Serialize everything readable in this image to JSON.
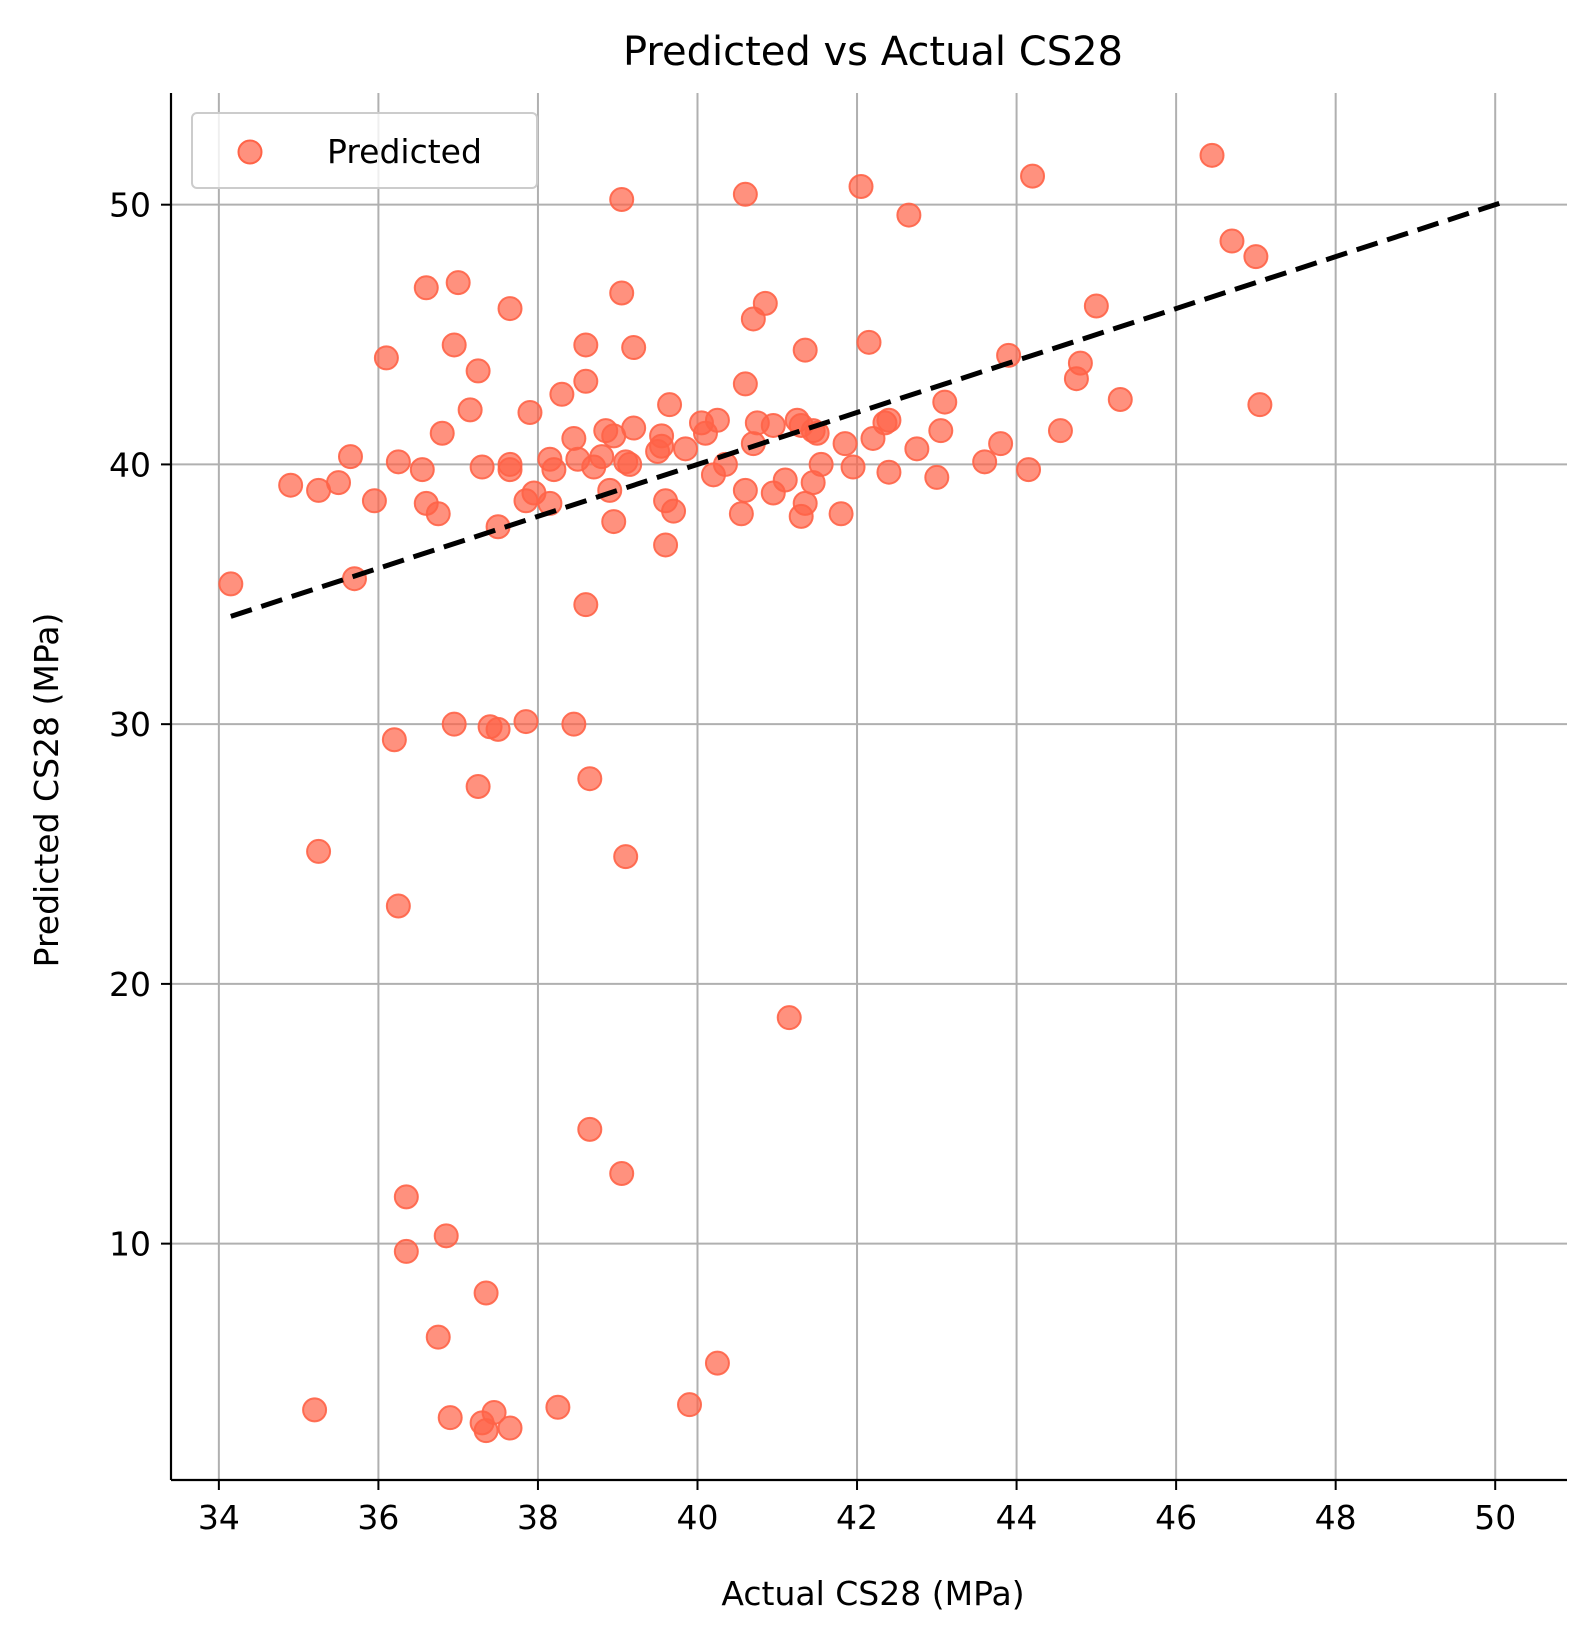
{
  "chart_data": {
    "type": "scatter",
    "title": "Predicted vs Actual CS28",
    "xlabel": "Actual CS28 (MPa)",
    "ylabel": "Predicted CS28 (MPa)",
    "xlim": [
      33.4,
      50.9
    ],
    "ylim": [
      0.9,
      54.3
    ],
    "xticks": [
      34,
      36,
      38,
      40,
      42,
      44,
      46,
      48,
      50
    ],
    "yticks": [
      10,
      20,
      30,
      40,
      50
    ],
    "grid": true,
    "legend_position": "top-left",
    "colors": {
      "points": "#ff6347",
      "reference_line": "#000000",
      "grid": "#b0b0b0"
    },
    "series": [
      {
        "name": "Predicted",
        "kind": "scatter",
        "points": [
          [
            34.15,
            35.4
          ],
          [
            34.9,
            39.2
          ],
          [
            35.25,
            39.0
          ],
          [
            35.5,
            39.3
          ],
          [
            35.65,
            40.3
          ],
          [
            35.7,
            35.6
          ],
          [
            35.95,
            38.6
          ],
          [
            36.1,
            44.1
          ],
          [
            36.25,
            40.1
          ],
          [
            36.55,
            39.8
          ],
          [
            36.6,
            38.5
          ],
          [
            36.6,
            46.8
          ],
          [
            36.75,
            38.1
          ],
          [
            36.8,
            41.2
          ],
          [
            36.95,
            44.6
          ],
          [
            37.0,
            47.0
          ],
          [
            37.15,
            42.1
          ],
          [
            37.25,
            43.6
          ],
          [
            37.3,
            39.9
          ],
          [
            37.5,
            37.6
          ],
          [
            37.65,
            40.0
          ],
          [
            37.65,
            39.8
          ],
          [
            37.65,
            46.0
          ],
          [
            37.85,
            38.6
          ],
          [
            37.9,
            42.0
          ],
          [
            37.95,
            38.9
          ],
          [
            38.15,
            40.2
          ],
          [
            38.15,
            38.5
          ],
          [
            38.2,
            39.8
          ],
          [
            38.3,
            42.7
          ],
          [
            38.45,
            41.0
          ],
          [
            38.5,
            40.2
          ],
          [
            38.6,
            44.6
          ],
          [
            38.6,
            43.2
          ],
          [
            38.7,
            39.9
          ],
          [
            38.8,
            40.3
          ],
          [
            38.85,
            41.3
          ],
          [
            38.9,
            39.0
          ],
          [
            38.95,
            41.1
          ],
          [
            38.95,
            37.8
          ],
          [
            39.05,
            46.6
          ],
          [
            39.05,
            50.2
          ],
          [
            39.1,
            40.1
          ],
          [
            39.15,
            40.0
          ],
          [
            39.2,
            44.5
          ],
          [
            39.2,
            41.4
          ],
          [
            39.5,
            40.5
          ],
          [
            39.55,
            41.1
          ],
          [
            39.55,
            40.7
          ],
          [
            39.6,
            38.6
          ],
          [
            39.6,
            36.9
          ],
          [
            39.65,
            42.3
          ],
          [
            39.7,
            38.2
          ],
          [
            39.85,
            40.6
          ],
          [
            40.05,
            41.6
          ],
          [
            40.1,
            41.2
          ],
          [
            40.2,
            39.6
          ],
          [
            40.25,
            41.7
          ],
          [
            40.35,
            40.0
          ],
          [
            40.55,
            38.1
          ],
          [
            40.6,
            39.0
          ],
          [
            40.6,
            43.1
          ],
          [
            40.6,
            50.4
          ],
          [
            40.7,
            45.6
          ],
          [
            40.7,
            40.8
          ],
          [
            40.75,
            41.6
          ],
          [
            40.85,
            46.2
          ],
          [
            40.95,
            41.5
          ],
          [
            40.95,
            38.9
          ],
          [
            41.1,
            39.4
          ],
          [
            41.25,
            41.7
          ],
          [
            41.3,
            41.5
          ],
          [
            41.3,
            38.0
          ],
          [
            41.35,
            38.5
          ],
          [
            41.35,
            44.4
          ],
          [
            41.45,
            41.3
          ],
          [
            41.45,
            39.3
          ],
          [
            41.5,
            41.2
          ],
          [
            41.55,
            40.0
          ],
          [
            41.8,
            38.1
          ],
          [
            41.85,
            40.8
          ],
          [
            41.95,
            39.9
          ],
          [
            42.05,
            50.7
          ],
          [
            42.15,
            44.7
          ],
          [
            42.2,
            41.0
          ],
          [
            42.35,
            41.6
          ],
          [
            42.4,
            41.7
          ],
          [
            42.4,
            39.7
          ],
          [
            42.65,
            49.6
          ],
          [
            42.75,
            40.6
          ],
          [
            43.0,
            39.5
          ],
          [
            43.05,
            41.3
          ],
          [
            43.1,
            42.4
          ],
          [
            43.6,
            40.1
          ],
          [
            43.8,
            40.8
          ],
          [
            43.9,
            44.2
          ],
          [
            44.15,
            39.8
          ],
          [
            44.2,
            51.1
          ],
          [
            44.55,
            41.3
          ],
          [
            44.75,
            43.3
          ],
          [
            44.8,
            43.9
          ],
          [
            45.0,
            46.1
          ],
          [
            45.3,
            42.5
          ],
          [
            46.45,
            51.9
          ],
          [
            46.7,
            48.6
          ],
          [
            47.0,
            48.0
          ],
          [
            47.05,
            42.3
          ],
          [
            36.2,
            29.4
          ],
          [
            36.95,
            30.0
          ],
          [
            37.25,
            27.6
          ],
          [
            37.4,
            29.9
          ],
          [
            37.5,
            29.8
          ],
          [
            37.85,
            30.1
          ],
          [
            38.45,
            30.0
          ],
          [
            38.6,
            34.6
          ],
          [
            38.65,
            27.9
          ],
          [
            35.25,
            25.1
          ],
          [
            36.25,
            23.0
          ],
          [
            39.1,
            24.9
          ],
          [
            41.15,
            18.7
          ],
          [
            38.65,
            14.4
          ],
          [
            39.05,
            12.7
          ],
          [
            36.35,
            11.8
          ],
          [
            36.85,
            10.3
          ],
          [
            36.35,
            9.7
          ],
          [
            37.35,
            8.1
          ],
          [
            36.75,
            6.4
          ],
          [
            40.25,
            5.4
          ],
          [
            35.2,
            3.6
          ],
          [
            36.9,
            3.3
          ],
          [
            37.3,
            3.1
          ],
          [
            37.45,
            3.5
          ],
          [
            37.35,
            2.8
          ],
          [
            37.65,
            2.9
          ],
          [
            38.25,
            3.7
          ],
          [
            39.9,
            3.8
          ]
        ]
      },
      {
        "name": "",
        "kind": "reference-line",
        "points": [
          [
            34.15,
            34.15
          ],
          [
            50.1,
            50.1
          ]
        ]
      }
    ]
  }
}
